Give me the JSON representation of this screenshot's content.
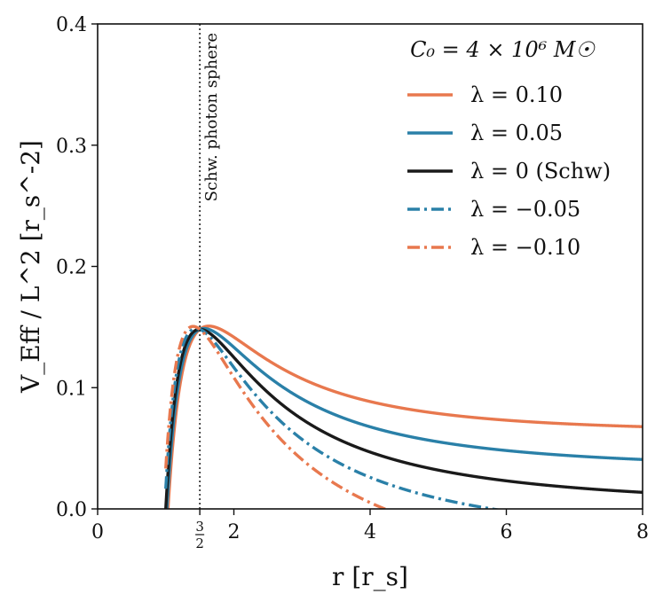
{
  "chart_data": {
    "type": "line",
    "xlabel": "r [r_s]",
    "ylabel": "V_Eff / L^2 [r_s^-2]",
    "xlim": [
      0,
      8
    ],
    "ylim": [
      0,
      0.4
    ],
    "xticks": [
      {
        "value": 0,
        "label": "0"
      },
      {
        "value": 2,
        "label": "2"
      },
      {
        "value": 4,
        "label": "4"
      },
      {
        "value": 6,
        "label": "6"
      },
      {
        "value": 8,
        "label": "8"
      }
    ],
    "yticks": [
      {
        "value": 0.0,
        "label": "0.0"
      },
      {
        "value": 0.1,
        "label": "0.1"
      },
      {
        "value": 0.2,
        "label": "0.2"
      },
      {
        "value": 0.3,
        "label": "0.3"
      },
      {
        "value": 0.4,
        "label": "0.4"
      }
    ],
    "special_tick": {
      "value": 1.5,
      "numerator": "3",
      "denominator": "2"
    },
    "photon_sphere": {
      "x": 1.5,
      "label": "Schw. photon sphere"
    },
    "legend_title": "C₀ = 4 × 10⁶ M☉",
    "legend_position": "top-right",
    "series": [
      {
        "name": "λ = 0.10",
        "lambda": 0.1,
        "color": "#E8784E",
        "style": "solid"
      },
      {
        "name": "λ = 0.05",
        "lambda": 0.05,
        "color": "#2A80A8",
        "style": "solid"
      },
      {
        "name": "λ = 0 (Schw)",
        "lambda": 0.0,
        "color": "#1a1a1a",
        "style": "solid"
      },
      {
        "name": "λ = −0.05",
        "lambda": -0.05,
        "color": "#2A80A8",
        "style": "dashdot"
      },
      {
        "name": "λ = −0.10",
        "lambda": -0.1,
        "color": "#E8784E",
        "style": "dashdot"
      }
    ]
  }
}
